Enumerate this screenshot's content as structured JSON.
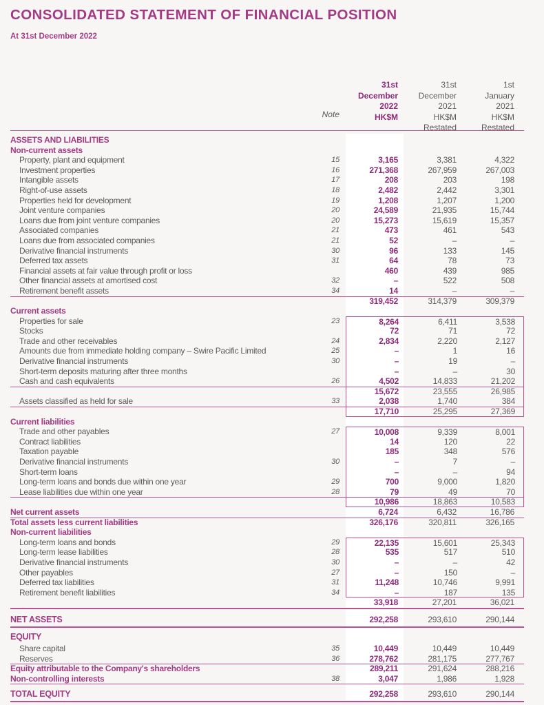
{
  "title": "CONSOLIDATED STATEMENT OF FINANCIAL POSITION",
  "subtitle": "At 31st December 2022",
  "columns": {
    "note": "Note",
    "c1": "31st\nDecember\n2022\nHK$M",
    "c2": "31st\nDecember\n2021\nHK$M\nRestated",
    "c3": "1st\nJanuary\n2021\nHK$M\nRestated"
  },
  "colors": {
    "accent": "#a33a84",
    "rule": "#b5528f"
  },
  "rows": [
    {
      "kind": "h1",
      "label": "ASSETS AND LIABILITIES",
      "note": "",
      "v": [
        "",
        "",
        ""
      ]
    },
    {
      "kind": "h2",
      "label": "Non-current assets",
      "note": "",
      "v": [
        "",
        "",
        ""
      ]
    },
    {
      "kind": "item",
      "label": "Property, plant and equipment",
      "note": "15",
      "v": [
        "3,165",
        "3,381",
        "4,322"
      ]
    },
    {
      "kind": "item",
      "label": "Investment properties",
      "note": "16",
      "v": [
        "271,368",
        "267,959",
        "267,003"
      ]
    },
    {
      "kind": "item",
      "label": "Intangible assets",
      "note": "17",
      "v": [
        "208",
        "203",
        "198"
      ]
    },
    {
      "kind": "item",
      "label": "Right-of-use assets",
      "note": "18",
      "v": [
        "2,482",
        "2,442",
        "3,301"
      ]
    },
    {
      "kind": "item",
      "label": "Properties held for development",
      "note": "19",
      "v": [
        "1,208",
        "1,207",
        "1,200"
      ]
    },
    {
      "kind": "item",
      "label": "Joint venture companies",
      "note": "20",
      "v": [
        "24,589",
        "21,935",
        "15,744"
      ]
    },
    {
      "kind": "item",
      "label": "Loans due from joint venture companies",
      "note": "20",
      "v": [
        "15,273",
        "15,619",
        "15,357"
      ]
    },
    {
      "kind": "item",
      "label": "Associated companies",
      "note": "21",
      "v": [
        "473",
        "461",
        "543"
      ]
    },
    {
      "kind": "item",
      "label": "Loans due from associated companies",
      "note": "21",
      "v": [
        "52",
        "–",
        "–"
      ]
    },
    {
      "kind": "item",
      "label": "Derivative financial instruments",
      "note": "30",
      "v": [
        "96",
        "133",
        "145"
      ]
    },
    {
      "kind": "item",
      "label": "Deferred tax assets",
      "note": "31",
      "v": [
        "64",
        "78",
        "73"
      ]
    },
    {
      "kind": "item",
      "label": "Financial assets at fair value through profit or loss",
      "note": "",
      "v": [
        "460",
        "439",
        "985"
      ]
    },
    {
      "kind": "item",
      "label": "Other financial assets at amortised cost",
      "note": "32",
      "v": [
        "–",
        "522",
        "508"
      ]
    },
    {
      "kind": "item",
      "label": "Retirement benefit assets",
      "note": "34",
      "v": [
        "14",
        "–",
        "–"
      ]
    },
    {
      "kind": "sub",
      "label": "",
      "note": "",
      "v": [
        "319,452",
        "314,379",
        "309,379"
      ]
    },
    {
      "kind": "h2",
      "label": "Current assets",
      "note": "",
      "v": [
        "",
        "",
        ""
      ]
    },
    {
      "kind": "item",
      "label": "Properties for sale",
      "note": "23",
      "v": [
        "8,264",
        "6,411",
        "3,538"
      ]
    },
    {
      "kind": "item",
      "label": "Stocks",
      "note": "",
      "v": [
        "72",
        "71",
        "72"
      ]
    },
    {
      "kind": "item",
      "label": "Trade and other receivables",
      "note": "24",
      "v": [
        "2,834",
        "2,220",
        "2,127"
      ]
    },
    {
      "kind": "item",
      "label": "Amounts due from immediate holding company – Swire Pacific Limited",
      "note": "25",
      "v": [
        "–",
        "1",
        "16"
      ]
    },
    {
      "kind": "item",
      "label": "Derivative financial instruments",
      "note": "30",
      "v": [
        "–",
        "19",
        "–"
      ]
    },
    {
      "kind": "item",
      "label": "Short-term deposits maturing after three months",
      "note": "",
      "v": [
        "–",
        "–",
        "30"
      ]
    },
    {
      "kind": "item",
      "label": "Cash and cash equivalents",
      "note": "26",
      "v": [
        "4,502",
        "14,833",
        "21,202"
      ]
    },
    {
      "kind": "sub",
      "label": "",
      "note": "",
      "v": [
        "15,672",
        "23,555",
        "26,985"
      ]
    },
    {
      "kind": "item",
      "label": "Assets classified as held for sale",
      "note": "33",
      "v": [
        "2,038",
        "1,740",
        "384"
      ]
    },
    {
      "kind": "sub",
      "label": "",
      "note": "",
      "v": [
        "17,710",
        "25,295",
        "27,369"
      ]
    },
    {
      "kind": "h2",
      "label": "Current liabilities",
      "note": "",
      "v": [
        "",
        "",
        ""
      ]
    },
    {
      "kind": "item",
      "label": "Trade and other payables",
      "note": "27",
      "v": [
        "10,008",
        "9,339",
        "8,001"
      ]
    },
    {
      "kind": "item",
      "label": "Contract liabilities",
      "note": "",
      "v": [
        "14",
        "120",
        "22"
      ]
    },
    {
      "kind": "item",
      "label": "Taxation payable",
      "note": "",
      "v": [
        "185",
        "348",
        "576"
      ]
    },
    {
      "kind": "item",
      "label": "Derivative financial instruments",
      "note": "30",
      "v": [
        "–",
        "7",
        "–"
      ]
    },
    {
      "kind": "item",
      "label": "Short-term loans",
      "note": "",
      "v": [
        "–",
        "–",
        "94"
      ]
    },
    {
      "kind": "item",
      "label": "Long-term loans and bonds due within one year",
      "note": "29",
      "v": [
        "700",
        "9,000",
        "1,820"
      ]
    },
    {
      "kind": "item",
      "label": "Lease liabilities due within one year",
      "note": "28",
      "v": [
        "79",
        "49",
        "70"
      ]
    },
    {
      "kind": "sub",
      "label": "",
      "note": "",
      "v": [
        "10,986",
        "18,863",
        "10,583"
      ]
    },
    {
      "kind": "tot",
      "label": "Net current assets",
      "note": "",
      "v": [
        "6,724",
        "6,432",
        "16,786"
      ]
    },
    {
      "kind": "tot",
      "label": "Total assets less current liabilities",
      "note": "",
      "v": [
        "326,176",
        "320,811",
        "326,165"
      ]
    },
    {
      "kind": "h2",
      "label": "Non-current liabilities",
      "note": "",
      "v": [
        "",
        "",
        ""
      ]
    },
    {
      "kind": "item",
      "label": "Long-term loans and bonds",
      "note": "29",
      "v": [
        "22,135",
        "15,601",
        "25,343"
      ]
    },
    {
      "kind": "item",
      "label": "Long-term lease liabilities",
      "note": "28",
      "v": [
        "535",
        "517",
        "510"
      ]
    },
    {
      "kind": "item",
      "label": "Derivative financial instruments",
      "note": "30",
      "v": [
        "–",
        "–",
        "42"
      ]
    },
    {
      "kind": "item",
      "label": "Other payables",
      "note": "27",
      "v": [
        "–",
        "150",
        "–"
      ]
    },
    {
      "kind": "item",
      "label": "Deferred tax liabilities",
      "note": "31",
      "v": [
        "11,248",
        "10,746",
        "9,991"
      ]
    },
    {
      "kind": "item",
      "label": "Retirement benefit liabilities",
      "note": "34",
      "v": [
        "–",
        "187",
        "135"
      ]
    },
    {
      "kind": "sub",
      "label": "",
      "note": "",
      "v": [
        "33,918",
        "27,201",
        "36,021"
      ]
    },
    {
      "kind": "big",
      "label": "NET ASSETS",
      "note": "",
      "v": [
        "292,258",
        "293,610",
        "290,144"
      ]
    },
    {
      "kind": "big",
      "label": "EQUITY",
      "note": "",
      "v": [
        "",
        "",
        ""
      ]
    },
    {
      "kind": "item",
      "label": "Share capital",
      "note": "35",
      "v": [
        "10,449",
        "10,449",
        "10,449"
      ]
    },
    {
      "kind": "item",
      "label": "Reserves",
      "note": "36",
      "v": [
        "278,762",
        "281,175",
        "277,767"
      ]
    },
    {
      "kind": "tot",
      "label": "Equity attributable to the Company's shareholders",
      "note": "",
      "v": [
        "289,211",
        "291,624",
        "288,216"
      ]
    },
    {
      "kind": "tot",
      "label": "Non-controlling interests",
      "note": "38",
      "v": [
        "3,047",
        "1,986",
        "1,928"
      ]
    },
    {
      "kind": "big",
      "label": "TOTAL EQUITY",
      "note": "",
      "v": [
        "292,258",
        "293,610",
        "290,144"
      ]
    }
  ]
}
